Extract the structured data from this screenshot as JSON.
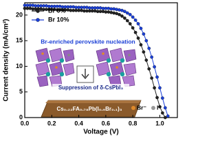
{
  "chart_data": {
    "type": "line",
    "x": [
      0,
      0.02,
      0.04,
      0.06,
      0.08,
      0.1,
      0.12,
      0.14,
      0.16,
      0.18,
      0.2,
      0.22,
      0.24,
      0.26,
      0.28,
      0.3,
      0.32,
      0.34,
      0.36,
      0.38,
      0.4,
      0.42,
      0.44,
      0.46,
      0.48,
      0.5,
      0.52,
      0.54,
      0.56,
      0.58,
      0.6,
      0.62,
      0.64,
      0.66,
      0.68,
      0.7,
      0.72,
      0.74,
      0.76,
      0.78,
      0.8,
      0.82,
      0.84,
      0.86,
      0.88,
      0.9,
      0.92,
      0.94,
      0.96,
      0.98,
      1.0,
      1.02,
      1.04,
      1.06,
      1.08
    ],
    "series": [
      {
        "name": "Br 0%",
        "color": "#222222",
        "values": [
          21.3,
          21.3,
          21.3,
          21.2,
          21.2,
          21.2,
          21.2,
          21.1,
          21.1,
          21.1,
          21.1,
          21.1,
          21.0,
          21.0,
          21.0,
          21.0,
          21.0,
          20.9,
          20.9,
          20.9,
          20.9,
          20.9,
          20.8,
          20.8,
          20.8,
          20.8,
          20.8,
          20.7,
          20.7,
          20.7,
          20.6,
          20.6,
          20.5,
          20.4,
          20.3,
          20.1,
          19.8,
          19.4,
          18.9,
          18.3,
          17.5,
          16.6,
          15.5,
          14.2,
          12.8,
          11.2,
          9.5,
          7.7,
          5.8,
          3.9,
          2.1,
          0.9,
          0.0,
          null,
          null
        ]
      },
      {
        "name": "Br 10%",
        "color": "#1a3fd6",
        "values": [
          21.9,
          21.9,
          21.9,
          21.9,
          21.8,
          21.8,
          21.8,
          21.8,
          21.8,
          21.7,
          21.7,
          21.7,
          21.7,
          21.7,
          21.6,
          21.6,
          21.6,
          21.6,
          21.6,
          21.5,
          21.5,
          21.5,
          21.5,
          21.5,
          21.4,
          21.4,
          21.4,
          21.4,
          21.4,
          21.3,
          21.3,
          21.3,
          21.2,
          21.2,
          21.1,
          21.0,
          20.9,
          20.7,
          20.4,
          20.1,
          19.6,
          19.0,
          18.3,
          17.4,
          16.3,
          15.0,
          13.5,
          11.8,
          9.9,
          7.9,
          5.8,
          3.8,
          1.9,
          0.3,
          null
        ]
      }
    ],
    "xlabel": "Voltage (V)",
    "ylabel": "Current density (mA/cm²)",
    "xlim": [
      0,
      1.13
    ],
    "ylim": [
      0,
      22.4
    ],
    "xticks": [
      {
        "value": 0,
        "label": "0.0"
      },
      0.2,
      0.4,
      0.6,
      0.8,
      {
        "value": 1,
        "label": "1.0"
      }
    ],
    "yticks": [
      0,
      5,
      10,
      15,
      20
    ],
    "grid": false,
    "legend": "upper left",
    "annotations": [
      "Br-enriched perovskite nucleation",
      "Suppression of δ-CsPbI₃",
      "Cs₀.₂₂FA₀.₇₈Pb(I₀.₉Br₀.₁)₃",
      "Br⁻",
      "I⁻"
    ]
  }
}
